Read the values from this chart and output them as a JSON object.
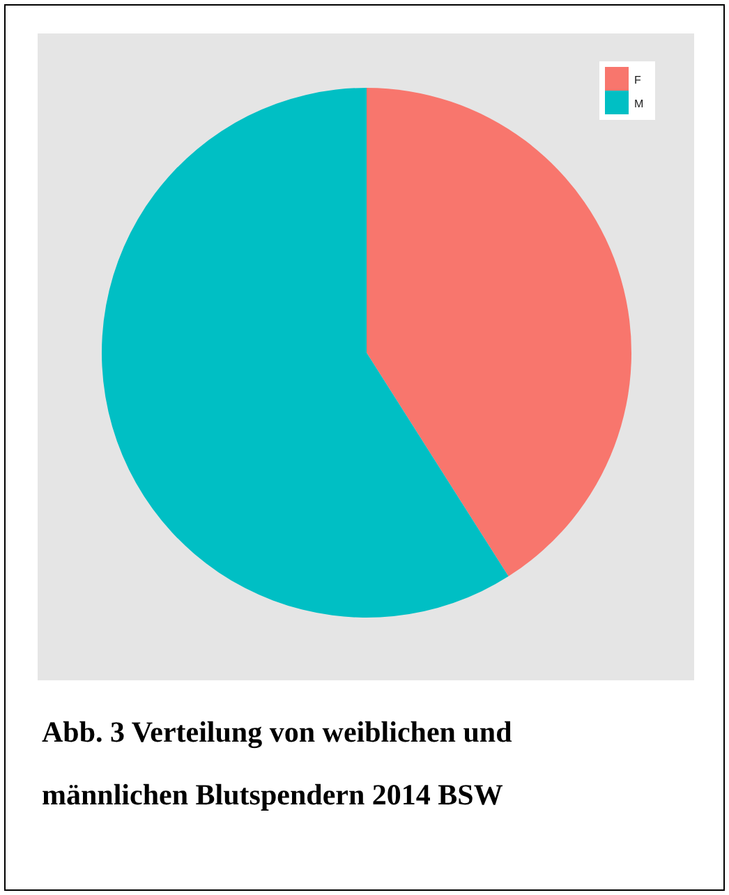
{
  "chart_data": {
    "type": "pie",
    "categories": [
      "F",
      "M"
    ],
    "values": [
      41,
      59
    ],
    "colors": [
      "#f8766d",
      "#00bfc4"
    ],
    "legend": "top right",
    "annotations": [
      "Abb. 3 Verteilung von weiblichen und männlichen Blutspendern 2014 BSW"
    ]
  }
}
